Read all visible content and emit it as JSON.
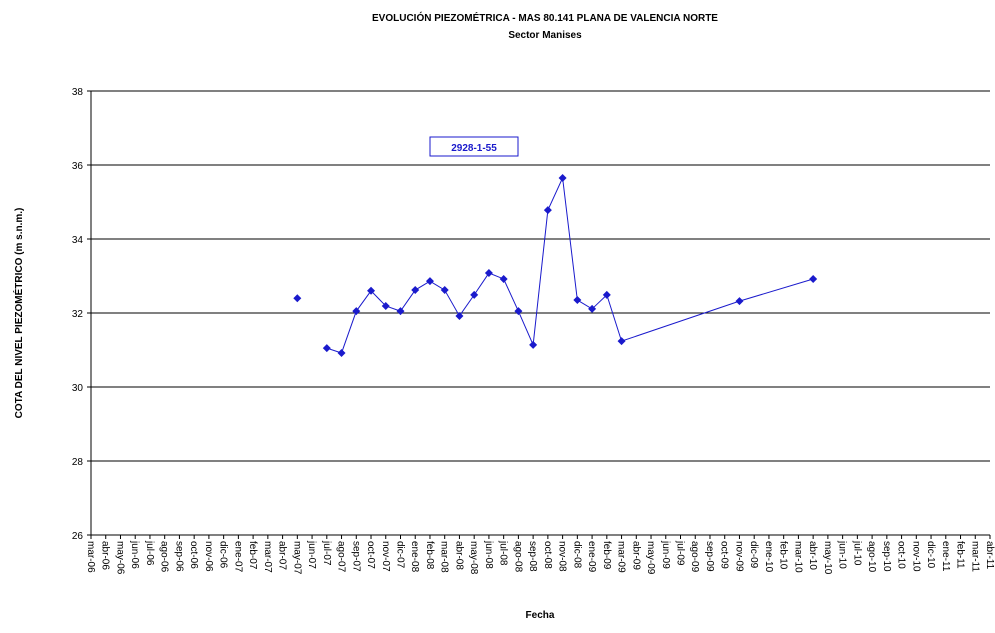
{
  "chart_data": {
    "type": "line",
    "title": "EVOLUCIÓN PIEZOMÉTRICA - MAS 80.141 PLANA DE VALENCIA NORTE",
    "subtitle": "Sector Manises",
    "x_label": "Fecha",
    "y_label": "COTA DEL NIVEL PIEZOMÉTRICO (m s.n.m.)",
    "categories": [
      "mar-06",
      "abr-06",
      "may-06",
      "jun-06",
      "jul-06",
      "ago-06",
      "sep-06",
      "oct-06",
      "nov-06",
      "dic-06",
      "ene-07",
      "feb-07",
      "mar-07",
      "abr-07",
      "may-07",
      "jun-07",
      "jul-07",
      "ago-07",
      "sep-07",
      "oct-07",
      "nov-07",
      "dic-07",
      "ene-08",
      "feb-08",
      "mar-08",
      "abr-08",
      "may-08",
      "jun-08",
      "jul-08",
      "ago-08",
      "sep-08",
      "oct-08",
      "nov-08",
      "dic-08",
      "ene-09",
      "feb-09",
      "mar-09",
      "abr-09",
      "may-09",
      "jun-09",
      "jul-09",
      "ago-09",
      "sep-09",
      "oct-09",
      "nov-09",
      "dic-09",
      "ene-10",
      "feb-10",
      "mar-10",
      "abr-10",
      "may-10",
      "jun-10",
      "jul-10",
      "ago-10",
      "sep-10",
      "oct-10",
      "nov-10",
      "dic-10",
      "ene-11",
      "feb-11",
      "mar-11",
      "abr-11"
    ],
    "series": [
      {
        "name": "2928-1-55",
        "color": "#1a1acc",
        "x": [
          "may-07",
          "jun-07",
          "jul-07",
          "ago-07",
          "sep-07",
          "oct-07",
          "nov-07",
          "dic-07",
          "ene-08",
          "feb-08",
          "mar-08",
          "abr-08",
          "may-08",
          "jun-08",
          "jul-08",
          "ago-08",
          "sep-08",
          "oct-08",
          "nov-08",
          "dic-08",
          "ene-09",
          "feb-09",
          "mar-09",
          "nov-09",
          "abr-10"
        ],
        "values": [
          32.4,
          null,
          31.05,
          30.92,
          32.05,
          32.6,
          32.19,
          32.05,
          32.62,
          32.86,
          32.62,
          31.92,
          32.49,
          33.08,
          32.92,
          32.05,
          31.14,
          34.78,
          35.65,
          32.35,
          32.11,
          32.49,
          31.24,
          32.32,
          32.92
        ]
      }
    ],
    "ylim": [
      26,
      38
    ],
    "yticks": [
      26,
      28,
      30,
      32,
      34,
      36,
      38
    ],
    "grid": true
  }
}
